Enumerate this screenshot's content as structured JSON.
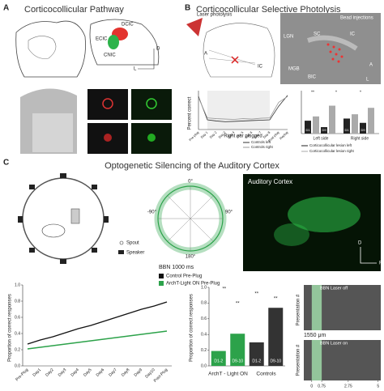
{
  "panelA": {
    "letter": "A",
    "title": "Corticocollicular Pathway",
    "labels": [
      "DCIC",
      "ECIC",
      "CNIC",
      "D",
      "L"
    ]
  },
  "panelB": {
    "letter": "B",
    "title": "Corticocollicular Selective Photolysis",
    "diagram_labels": [
      "Laser photolysis",
      "A",
      "IC"
    ],
    "photo_labels": [
      "Bead injections",
      "LGN",
      "SC",
      "IC",
      "MGB",
      "BIC",
      "A",
      "L"
    ],
    "line_chart": {
      "ylabel": "Percent correct",
      "band_label": "Right ear plugged",
      "categories": [
        "Pre-plug",
        "Day 1",
        "Day 2",
        "Day 3",
        "Day 4",
        "Day 5",
        "Day 6",
        "Day 7",
        "Day 8",
        "Post-plug",
        "Replug"
      ],
      "ylim": [
        0,
        100
      ],
      "series": [
        {
          "name": "Controls left",
          "color": "#333333",
          "values": [
            85,
            25,
            22,
            20,
            21,
            22,
            23,
            24,
            25,
            60,
            88
          ]
        },
        {
          "name": "Controls right",
          "color": "#999999",
          "values": [
            82,
            30,
            28,
            27,
            26,
            28,
            27,
            29,
            30,
            70,
            85
          ]
        }
      ]
    },
    "bar_chart": {
      "categories": [
        "Left side",
        "Right side"
      ],
      "bar_labels": [
        "D1",
        "D9",
        "D1",
        "D9"
      ],
      "significance": [
        "**",
        "*",
        "*"
      ],
      "ylim": [
        0,
        100
      ],
      "series": [
        {
          "name": "Corticocollicular lesion left",
          "color": "#222222",
          "values": [
            30,
            15,
            35,
            25
          ]
        },
        {
          "name": "Corticocollicular lesion right",
          "color": "#aaaaaa",
          "values": [
            40,
            65,
            45,
            60
          ]
        }
      ]
    }
  },
  "panelC": {
    "letter": "C",
    "title": "Optogenetic Silencing of the Auditory Cortex",
    "legend": [
      "Spout",
      "Speaker"
    ],
    "polar_labels": [
      "0°",
      "90°",
      "180°",
      "-90°"
    ],
    "image_label": "Auditory Cortex",
    "compass": [
      "D",
      "P"
    ],
    "stimulus": "BBN 1000 ms",
    "scatter": {
      "ylabel": "Proportion of correct responses",
      "categories": [
        "Pre-Plug",
        "Day1",
        "Day2",
        "Day3",
        "Day4",
        "Day5",
        "Day6",
        "Day7",
        "Day8",
        "Day9",
        "Day10",
        "Post-Plug"
      ],
      "ylim": [
        0,
        1
      ],
      "yticks": [
        {
          "value": 0,
          "label": "0.0"
        },
        {
          "value": 0.2,
          "label": "0.2"
        },
        {
          "value": 0.4,
          "label": "0.4"
        },
        {
          "value": 0.6,
          "label": "0.6"
        },
        {
          "value": 0.8,
          "label": "0.8"
        },
        {
          "value": 1,
          "label": "1.0"
        }
      ],
      "series": [
        {
          "name": "Control Pre-Plug",
          "color": "#111111",
          "values": [
            0.27,
            0.32,
            0.36,
            0.41,
            0.46,
            0.5,
            0.55,
            0.6,
            0.65,
            0.7,
            0.74,
            0.79
          ]
        },
        {
          "name": "ArchT-Light ON Pre-Plug",
          "color": "#2ca24a",
          "values": [
            0.21,
            0.23,
            0.25,
            0.27,
            0.29,
            0.31,
            0.33,
            0.35,
            0.37,
            0.39,
            0.41,
            0.43
          ]
        }
      ]
    },
    "bars": {
      "ylabel": "Proportion of correct responses",
      "categories": [
        "D1-2",
        "D9-10",
        "D1-2",
        "D9-10"
      ],
      "values": [
        0.19,
        0.41,
        0.3,
        0.74
      ],
      "colors": [
        "#2ca24a",
        "#2ca24a",
        "#333333",
        "#333333"
      ],
      "groups": [
        "ArchT - Light ON",
        "Controls"
      ],
      "significance": [
        "**",
        "**",
        "**",
        "**"
      ],
      "ylim": [
        0,
        1
      ],
      "yticks": [
        {
          "value": 0,
          "label": "0.0"
        },
        {
          "value": 0.2,
          "label": "0.2"
        },
        {
          "value": 0.4,
          "label": "0.4"
        },
        {
          "value": 0.6,
          "label": "0.6"
        },
        {
          "value": 0.8,
          "label": "0.8"
        },
        {
          "value": 1,
          "label": "1.0"
        }
      ]
    },
    "raster": {
      "ylabel": "Presentation #",
      "labels": [
        "BBN Laser off",
        "BBN Laser on"
      ],
      "depth": "1550 μm",
      "xlim": [
        -0.6,
        5.2
      ],
      "xticks": [
        0,
        0.75,
        2.75,
        5
      ]
    }
  }
}
